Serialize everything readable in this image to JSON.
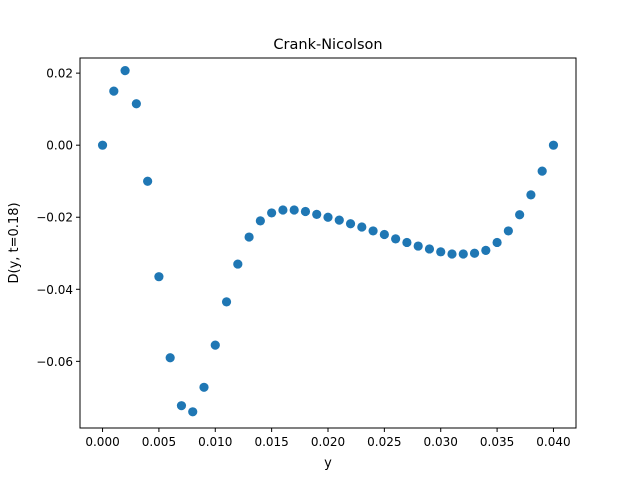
{
  "chart_data": {
    "type": "scatter",
    "title": "Crank-Nicolson",
    "xlabel": "y",
    "ylabel": "D(y, t=0.18)",
    "xlim": [
      -0.002,
      0.002,
      0.042
    ],
    "ylim": [
      -0.0785,
      0.0242
    ],
    "xticks": [
      0.0,
      0.005,
      0.01,
      0.015,
      0.02,
      0.025,
      0.03,
      0.035,
      0.04
    ],
    "xtick_labels": [
      "0.000",
      "0.005",
      "0.010",
      "0.015",
      "0.020",
      "0.025",
      "0.030",
      "0.035",
      "0.040"
    ],
    "yticks": [
      0.02,
      0.0,
      -0.02,
      -0.04,
      -0.06
    ],
    "ytick_labels": [
      "0.02",
      "0.00",
      "−0.02",
      "−0.04",
      "−0.06"
    ],
    "grid": false,
    "marker_color": "#1f77b4",
    "series": [
      {
        "x": [
          0.0,
          0.001,
          0.002,
          0.003,
          0.004,
          0.005,
          0.006,
          0.007,
          0.008,
          0.009,
          0.01,
          0.011,
          0.012,
          0.013,
          0.014,
          0.015,
          0.016,
          0.017,
          0.018,
          0.019,
          0.02,
          0.021,
          0.022,
          0.023,
          0.024,
          0.025,
          0.026,
          0.027,
          0.028,
          0.029,
          0.03,
          0.031,
          0.032,
          0.033,
          0.034,
          0.035,
          0.036,
          0.037,
          0.038,
          0.039,
          0.04
        ],
        "y": [
          0.0,
          0.015,
          0.0207,
          0.0115,
          -0.01,
          -0.0365,
          -0.059,
          -0.0723,
          -0.074,
          -0.0672,
          -0.0555,
          -0.0435,
          -0.033,
          -0.0255,
          -0.021,
          -0.0188,
          -0.018,
          -0.018,
          -0.0184,
          -0.0192,
          -0.02,
          -0.0208,
          -0.0218,
          -0.0227,
          -0.0238,
          -0.0248,
          -0.026,
          -0.027,
          -0.028,
          -0.0288,
          -0.0296,
          -0.0302,
          -0.0302,
          -0.03,
          -0.0292,
          -0.027,
          -0.0238,
          -0.0193,
          -0.0138,
          -0.0072,
          0.0
        ]
      }
    ]
  }
}
